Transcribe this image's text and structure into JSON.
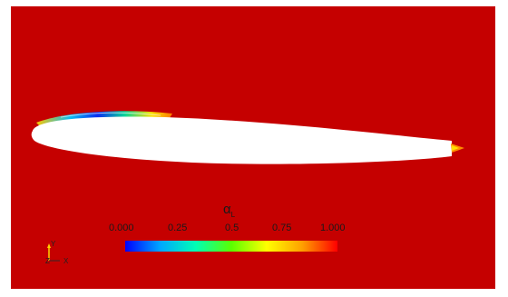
{
  "colormap": {
    "title": "α",
    "title_subscript": "L",
    "ticks": [
      "0.000",
      "0.25",
      "0.5",
      "0.75",
      "1.000"
    ],
    "colors": [
      "#0000ff",
      "#00a8ff",
      "#00ffb4",
      "#5aff00",
      "#ffff00",
      "#ffa000",
      "#ff0000"
    ],
    "background_color": "#c50000"
  },
  "orientation_axes": {
    "y_label": "Y",
    "z_label": "Z",
    "x_label": "X"
  }
}
